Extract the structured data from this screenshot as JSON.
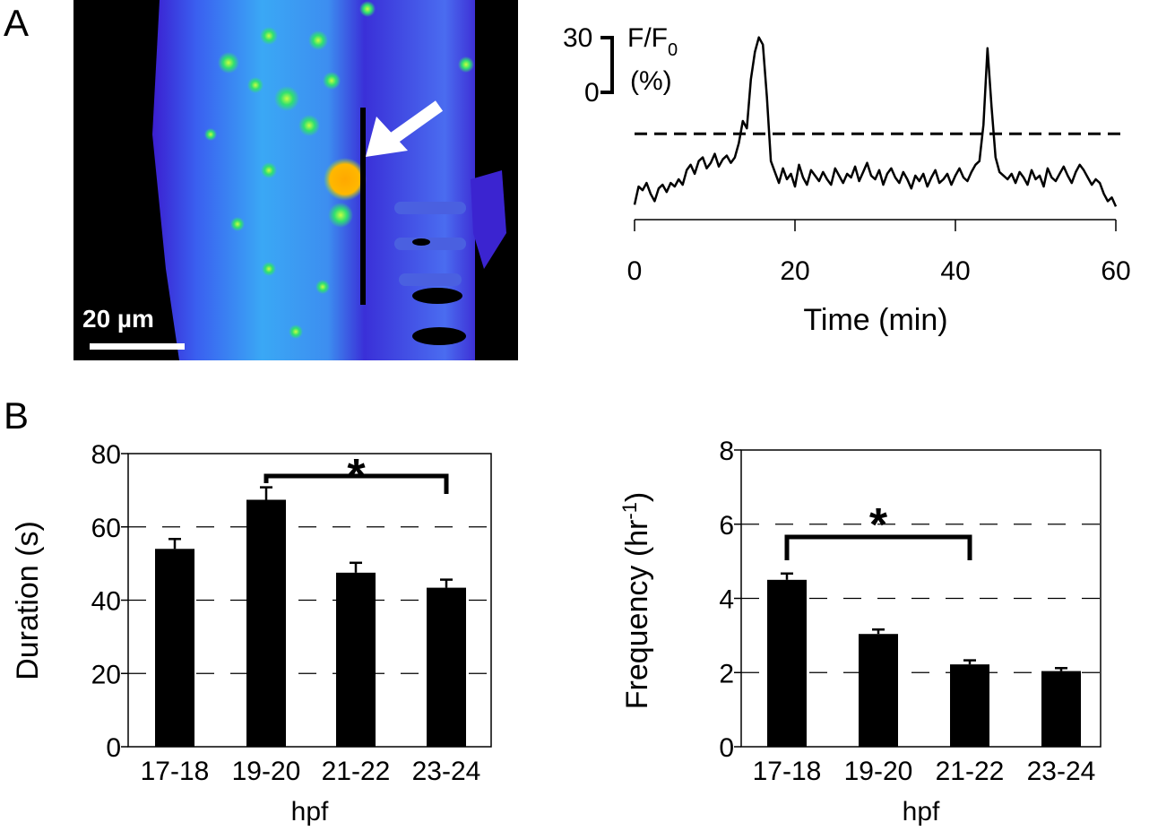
{
  "panels": {
    "a": "A",
    "b": "B"
  },
  "image": {
    "scale_bar_label": "20 µm",
    "colors": {
      "background": "#000000",
      "tissue": "#3a22d8",
      "mid": "#2f8ff0",
      "high": "#2fe070",
      "peak": "#ffb000",
      "arrow": "#ffffff"
    }
  },
  "chart_data": [
    {
      "type": "line",
      "xlabel": "Time (min)",
      "x_ticks": [
        "0",
        "20",
        "40",
        "60"
      ],
      "xlim": [
        0,
        60
      ],
      "scale_bar": {
        "label_top": "30",
        "label_bottom": "0",
        "unit_label": "F/F",
        "unit_subscript": "0",
        "unit_percent": "(%)",
        "range": [
          0,
          30
        ]
      },
      "threshold": 25,
      "series": [
        {
          "x": [
            0,
            0.5,
            1,
            1.5,
            2,
            2.5,
            3,
            3.5,
            4,
            4.5,
            5,
            5.5,
            6,
            6.5,
            7,
            7.5,
            8,
            8.5,
            9,
            9.5,
            10,
            10.5,
            11,
            11.5,
            12,
            12.5,
            13,
            13.5,
            14,
            14.5,
            15,
            15.5,
            16,
            16.5,
            17,
            17.5,
            18,
            18.5,
            19,
            19.5,
            20,
            20.5,
            21,
            21.5,
            22,
            22.5,
            23,
            23.5,
            24,
            24.5,
            25,
            25.5,
            26,
            26.5,
            27,
            27.5,
            28,
            28.5,
            29,
            29.5,
            30,
            30.5,
            31,
            31.5,
            32,
            32.5,
            33,
            33.5,
            34,
            34.5,
            35,
            35.5,
            36,
            36.5,
            37,
            37.5,
            38,
            38.5,
            39,
            39.5,
            40,
            40.5,
            41,
            41.5,
            42,
            42.5,
            43,
            43.5,
            44,
            44.5,
            45,
            45.5,
            46,
            46.5,
            47,
            47.5,
            48,
            48.5,
            49,
            49.5,
            50,
            50.5,
            51,
            51.5,
            52,
            52.5,
            53,
            53.5,
            54,
            54.5,
            55,
            55.5,
            56,
            56.5,
            57,
            57.5,
            58,
            58.5,
            59,
            59.5,
            60
          ],
          "y": [
            -14,
            -4,
            -6,
            -2,
            -8,
            -12,
            -5,
            -3,
            -7,
            -2,
            -4,
            0,
            -3,
            5,
            8,
            3,
            10,
            12,
            6,
            9,
            14,
            7,
            11,
            13,
            9,
            12,
            20,
            32,
            28,
            55,
            70,
            78,
            74,
            45,
            10,
            4,
            -2,
            6,
            0,
            3,
            -4,
            8,
            1,
            -3,
            5,
            2,
            -1,
            4,
            0,
            -3,
            6,
            2,
            -2,
            3,
            1,
            7,
            -1,
            4,
            9,
            2,
            0,
            5,
            -3,
            3,
            6,
            1,
            -2,
            4,
            0,
            -5,
            2,
            -1,
            3,
            -4,
            1,
            5,
            -2,
            0,
            3,
            -3,
            2,
            6,
            1,
            -1,
            4,
            8,
            10,
            30,
            72,
            40,
            12,
            4,
            2,
            0,
            3,
            -2,
            4,
            1,
            -3,
            5,
            0,
            2,
            -4,
            6,
            1,
            -1,
            3,
            7,
            2,
            -2,
            4,
            8,
            5,
            1,
            -3,
            0,
            -2,
            -8,
            -12,
            -10,
            -15
          ]
        }
      ]
    },
    {
      "type": "bar",
      "categories": [
        "17-18",
        "19-20",
        "21-22",
        "23-24"
      ],
      "values": [
        54,
        67.4,
        47.5,
        43.4
      ],
      "errors": [
        2.7,
        3.4,
        2.7,
        2.2
      ],
      "xlabel": "hpf",
      "ylabel": "Duration (s)",
      "ylim": [
        0,
        80
      ],
      "y_ticks": [
        "0",
        "20",
        "40",
        "60",
        "80"
      ],
      "grid": "dashed horizontal",
      "significance": {
        "from": "19-20",
        "to": "23-24",
        "label": "*"
      }
    },
    {
      "type": "bar",
      "categories": [
        "17-18",
        "19-20",
        "21-22",
        "23-24"
      ],
      "values": [
        4.5,
        3.04,
        2.22,
        2.04
      ],
      "errors": [
        0.17,
        0.12,
        0.11,
        0.08
      ],
      "xlabel": "hpf",
      "ylabel": "Frequency (hr",
      "ylabel_superscript": "-1",
      "ylabel_close": ")",
      "ylim": [
        0,
        8
      ],
      "y_ticks": [
        "0",
        "2",
        "4",
        "6",
        "8"
      ],
      "grid": "dashed horizontal",
      "significance": {
        "from": "17-18",
        "to": "21-22",
        "label": "*"
      }
    }
  ]
}
